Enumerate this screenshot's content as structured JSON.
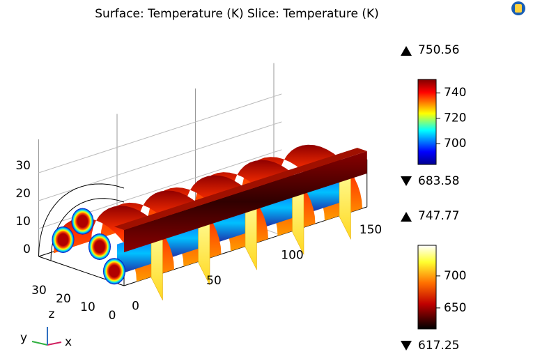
{
  "chart_data": {
    "type": "slice3d",
    "title": "Surface: Temperature (K) Slice: Temperature (K)",
    "xticks": [
      0,
      50,
      100,
      150
    ],
    "yticks": [
      0,
      10,
      20,
      30
    ],
    "zticks": [
      0,
      10,
      20,
      30
    ],
    "triad_labels": [
      "x",
      "y",
      "z"
    ],
    "colorbars": [
      {
        "max": 750.56,
        "min": 683.58,
        "ticks": [
          700,
          720,
          740
        ],
        "colormap": "jet"
      },
      {
        "max": 747.77,
        "min": 617.25,
        "ticks": [
          650,
          700
        ],
        "colormap": "heat"
      }
    ]
  }
}
